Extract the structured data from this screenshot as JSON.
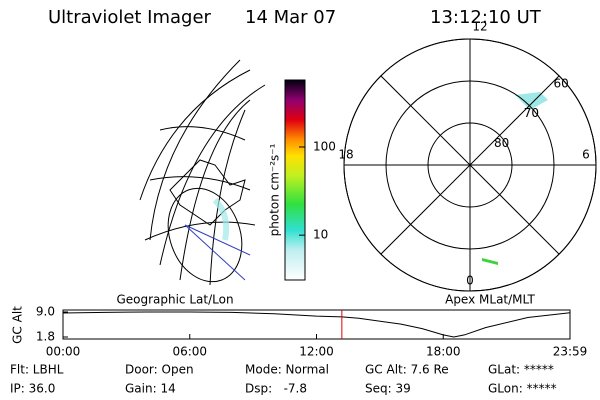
{
  "header": {
    "title": "Ultraviolet Imager",
    "date": "14 Mar 07",
    "time": "13:12:10 UT"
  },
  "colorbar": {
    "label": "photon cm⁻²s⁻¹",
    "scale": "log",
    "lim": [
      3.1,
      575
    ],
    "ticks": [
      10,
      100
    ]
  },
  "left_panel": {
    "label": "Geographic Lat/Lon"
  },
  "right_panel": {
    "label": "Apex MLat/MLT",
    "mlt_labels": [
      "12",
      "18",
      "6",
      "0"
    ],
    "rlim": [
      90,
      60
    ],
    "lat_rings": [
      80,
      70,
      60
    ]
  },
  "chart_data": {
    "type": "line",
    "ylabel": "GC Alt",
    "x": [
      0,
      2,
      4,
      6,
      8,
      10,
      12,
      13.2,
      14,
      16,
      17,
      18,
      18.5,
      19,
      20,
      22,
      24
    ],
    "series": [
      {
        "color": "#000000",
        "values": [
          8.7,
          8.9,
          9.0,
          9.0,
          8.9,
          8.5,
          7.8,
          7.6,
          7.2,
          5.5,
          4.2,
          2.4,
          1.8,
          2.4,
          4.5,
          7.4,
          8.8
        ]
      }
    ],
    "marker": 13.2,
    "marker_color": "#e00000",
    "xlim": [
      0,
      24
    ],
    "xticks": [
      {
        "value": 0,
        "label": "00:00"
      },
      {
        "value": 6,
        "label": "06:00"
      },
      {
        "value": 12,
        "label": "12:00"
      },
      {
        "value": 18,
        "label": "18:00"
      },
      {
        "value": 24,
        "label": "23:59"
      }
    ],
    "ylim": [
      1.8,
      9.0
    ],
    "yticks": [
      {
        "value": 1.8,
        "label": "1.8"
      },
      {
        "value": 9.0,
        "label": "9.0"
      }
    ]
  },
  "footer": {
    "row1": [
      "Flt: LBHL",
      "Door: Open",
      "Mode: Normal",
      "GC Alt: 7.6 Re",
      "GLat: *****"
    ],
    "row2": [
      "IP: 36.0",
      "Gain: 14",
      "Dsp:   -7.8",
      "Seq: 39",
      "GLon: *****"
    ]
  }
}
